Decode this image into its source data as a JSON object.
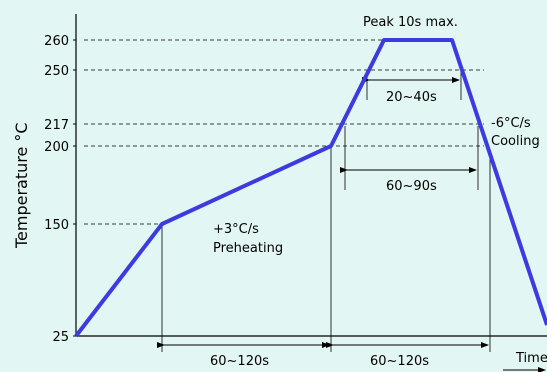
{
  "chart_data": {
    "type": "line",
    "ylabel": "Temperature °C",
    "xlabel": "Time",
    "colors": {
      "profile": "#3b3be0",
      "background": "#e2f7f3"
    },
    "y_ticks": [
      25,
      150,
      200,
      217,
      250,
      260
    ],
    "series": [
      {
        "x": [
          "start",
          "preheat-start",
          "preheat-end",
          "peak-start",
          "peak-end",
          "end"
        ],
        "values": [
          25,
          150,
          200,
          260,
          260,
          25
        ]
      }
    ],
    "annotations": {
      "peak": "Peak 10s max.",
      "time_above_250": "20~40s",
      "time_above_217": "60~90s",
      "preheat_duration": "60~120s",
      "ramp_duration": "60~120s",
      "preheat_rate": "+3°C/s",
      "preheat_label": "Preheating",
      "cooling_rate": "-6°C/s",
      "cooling_label": "Cooling"
    }
  }
}
